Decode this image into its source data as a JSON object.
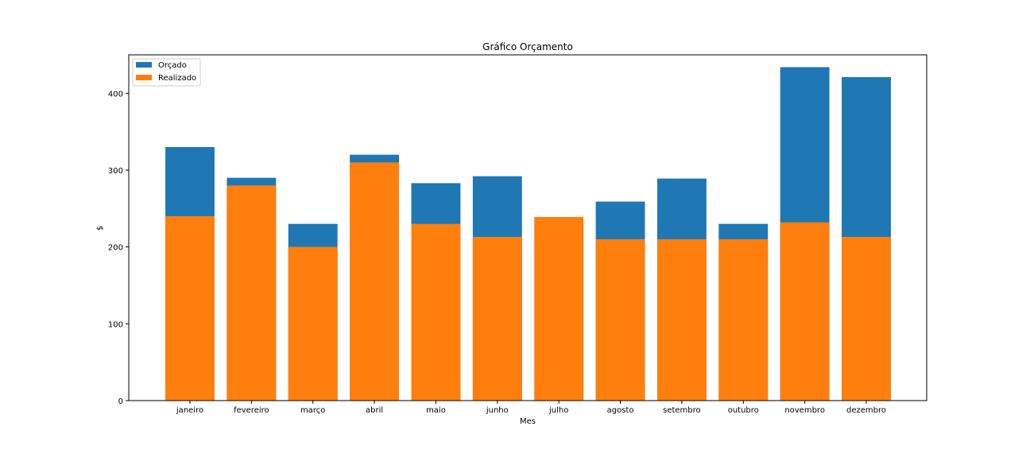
{
  "chart_data": {
    "type": "bar",
    "title": "Gráfico Orçamento",
    "xlabel": "Mes",
    "ylabel": "$",
    "ylim": [
      0,
      450
    ],
    "yticks": [
      0,
      100,
      200,
      300,
      400
    ],
    "grid": false,
    "legend_position": "top-left",
    "categories": [
      "janeiro",
      "fevereiro",
      "março",
      "abril",
      "maio",
      "junho",
      "julho",
      "agosto",
      "setembro",
      "outubro",
      "novembro",
      "dezembro"
    ],
    "series": [
      {
        "name": "Orçado",
        "color": "#1f77b4",
        "values": [
          330,
          290,
          230,
          320,
          283,
          292,
          0,
          259,
          289,
          230,
          434,
          421
        ]
      },
      {
        "name": "Realizado",
        "color": "#ff7f0e",
        "values": [
          240,
          280,
          200,
          310,
          230,
          213,
          239,
          210,
          210,
          210,
          232,
          213
        ]
      }
    ]
  }
}
